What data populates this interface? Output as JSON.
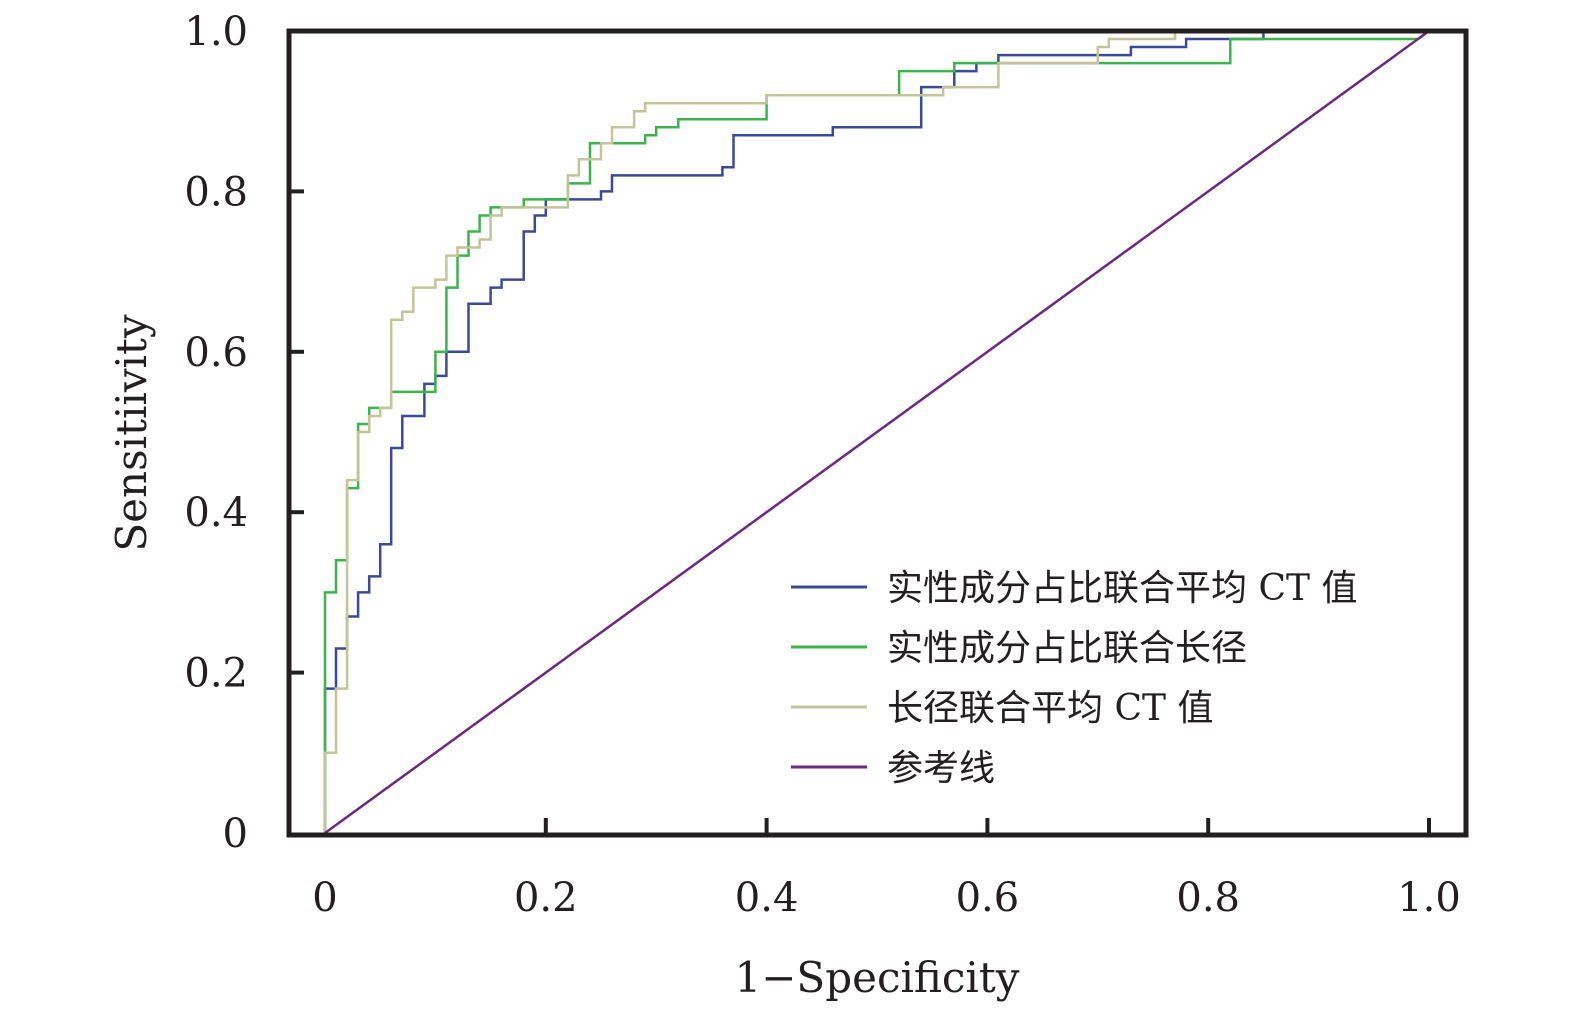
{
  "chart_data": {
    "type": "line",
    "xlabel": "1−Specificity",
    "ylabel": "Sensitiivity",
    "xlim": [
      0,
      1.0
    ],
    "ylim": [
      0,
      1.0
    ],
    "x_ticks": [
      "0",
      "0.2",
      "0.4",
      "0.6",
      "0.8",
      "1.0"
    ],
    "y_ticks": [
      "0",
      "0.2",
      "0.4",
      "0.6",
      "0.8",
      "1.0"
    ],
    "grid": false,
    "legend_position": "bottom-right",
    "series": [
      {
        "name": "实性成分占比联合平均 CT 值",
        "color": "#3a4a9a",
        "points": [
          [
            0,
            0
          ],
          [
            0,
            0.18
          ],
          [
            0.01,
            0.18
          ],
          [
            0.01,
            0.23
          ],
          [
            0.02,
            0.23
          ],
          [
            0.02,
            0.27
          ],
          [
            0.03,
            0.27
          ],
          [
            0.03,
            0.3
          ],
          [
            0.04,
            0.3
          ],
          [
            0.04,
            0.32
          ],
          [
            0.05,
            0.32
          ],
          [
            0.05,
            0.36
          ],
          [
            0.06,
            0.36
          ],
          [
            0.06,
            0.48
          ],
          [
            0.07,
            0.48
          ],
          [
            0.07,
            0.52
          ],
          [
            0.09,
            0.52
          ],
          [
            0.09,
            0.56
          ],
          [
            0.1,
            0.56
          ],
          [
            0.1,
            0.57
          ],
          [
            0.11,
            0.57
          ],
          [
            0.11,
            0.6
          ],
          [
            0.13,
            0.6
          ],
          [
            0.13,
            0.66
          ],
          [
            0.15,
            0.66
          ],
          [
            0.15,
            0.68
          ],
          [
            0.16,
            0.68
          ],
          [
            0.16,
            0.69
          ],
          [
            0.18,
            0.69
          ],
          [
            0.18,
            0.75
          ],
          [
            0.19,
            0.75
          ],
          [
            0.19,
            0.77
          ],
          [
            0.2,
            0.77
          ],
          [
            0.2,
            0.79
          ],
          [
            0.25,
            0.79
          ],
          [
            0.25,
            0.8
          ],
          [
            0.26,
            0.8
          ],
          [
            0.26,
            0.82
          ],
          [
            0.36,
            0.82
          ],
          [
            0.36,
            0.83
          ],
          [
            0.37,
            0.83
          ],
          [
            0.37,
            0.87
          ],
          [
            0.46,
            0.87
          ],
          [
            0.46,
            0.88
          ],
          [
            0.54,
            0.88
          ],
          [
            0.54,
            0.93
          ],
          [
            0.57,
            0.93
          ],
          [
            0.57,
            0.95
          ],
          [
            0.59,
            0.95
          ],
          [
            0.59,
            0.96
          ],
          [
            0.61,
            0.96
          ],
          [
            0.61,
            0.97
          ],
          [
            0.73,
            0.97
          ],
          [
            0.73,
            0.98
          ],
          [
            0.78,
            0.98
          ],
          [
            0.78,
            0.99
          ],
          [
            0.85,
            0.99
          ],
          [
            0.85,
            1.0
          ],
          [
            1.0,
            1.0
          ]
        ]
      },
      {
        "name": "实性成分占比联合长径",
        "color": "#3cb44b",
        "points": [
          [
            0,
            0
          ],
          [
            0,
            0.1
          ],
          [
            0,
            0.3
          ],
          [
            0.01,
            0.3
          ],
          [
            0.01,
            0.34
          ],
          [
            0.02,
            0.34
          ],
          [
            0.02,
            0.43
          ],
          [
            0.03,
            0.43
          ],
          [
            0.03,
            0.51
          ],
          [
            0.04,
            0.51
          ],
          [
            0.04,
            0.53
          ],
          [
            0.06,
            0.53
          ],
          [
            0.06,
            0.55
          ],
          [
            0.1,
            0.55
          ],
          [
            0.1,
            0.6
          ],
          [
            0.11,
            0.6
          ],
          [
            0.11,
            0.68
          ],
          [
            0.12,
            0.68
          ],
          [
            0.12,
            0.72
          ],
          [
            0.13,
            0.72
          ],
          [
            0.13,
            0.75
          ],
          [
            0.14,
            0.75
          ],
          [
            0.14,
            0.77
          ],
          [
            0.15,
            0.77
          ],
          [
            0.15,
            0.78
          ],
          [
            0.18,
            0.78
          ],
          [
            0.18,
            0.79
          ],
          [
            0.22,
            0.79
          ],
          [
            0.22,
            0.81
          ],
          [
            0.24,
            0.81
          ],
          [
            0.24,
            0.86
          ],
          [
            0.27,
            0.86
          ],
          [
            0.29,
            0.86
          ],
          [
            0.29,
            0.87
          ],
          [
            0.3,
            0.87
          ],
          [
            0.3,
            0.88
          ],
          [
            0.32,
            0.88
          ],
          [
            0.32,
            0.89
          ],
          [
            0.4,
            0.89
          ],
          [
            0.4,
            0.92
          ],
          [
            0.52,
            0.92
          ],
          [
            0.52,
            0.95
          ],
          [
            0.57,
            0.95
          ],
          [
            0.57,
            0.96
          ],
          [
            0.61,
            0.96
          ],
          [
            0.7,
            0.96
          ],
          [
            0.82,
            0.96
          ],
          [
            0.82,
            0.99
          ],
          [
            0.99,
            0.99
          ],
          [
            1.0,
            1.0
          ]
        ]
      },
      {
        "name": "长径联合平均 CT 值",
        "color": "#c4c49a",
        "points": [
          [
            0,
            0
          ],
          [
            0,
            0.1
          ],
          [
            0.01,
            0.1
          ],
          [
            0.01,
            0.18
          ],
          [
            0.02,
            0.18
          ],
          [
            0.02,
            0.44
          ],
          [
            0.03,
            0.44
          ],
          [
            0.03,
            0.5
          ],
          [
            0.04,
            0.5
          ],
          [
            0.04,
            0.52
          ],
          [
            0.05,
            0.52
          ],
          [
            0.05,
            0.53
          ],
          [
            0.06,
            0.53
          ],
          [
            0.06,
            0.64
          ],
          [
            0.07,
            0.64
          ],
          [
            0.07,
            0.65
          ],
          [
            0.08,
            0.65
          ],
          [
            0.08,
            0.68
          ],
          [
            0.1,
            0.68
          ],
          [
            0.1,
            0.69
          ],
          [
            0.11,
            0.69
          ],
          [
            0.11,
            0.72
          ],
          [
            0.12,
            0.72
          ],
          [
            0.12,
            0.73
          ],
          [
            0.14,
            0.73
          ],
          [
            0.14,
            0.74
          ],
          [
            0.15,
            0.74
          ],
          [
            0.15,
            0.77
          ],
          [
            0.16,
            0.77
          ],
          [
            0.16,
            0.78
          ],
          [
            0.22,
            0.78
          ],
          [
            0.22,
            0.82
          ],
          [
            0.23,
            0.82
          ],
          [
            0.23,
            0.84
          ],
          [
            0.25,
            0.84
          ],
          [
            0.25,
            0.86
          ],
          [
            0.26,
            0.86
          ],
          [
            0.26,
            0.88
          ],
          [
            0.28,
            0.88
          ],
          [
            0.28,
            0.9
          ],
          [
            0.29,
            0.9
          ],
          [
            0.29,
            0.91
          ],
          [
            0.4,
            0.91
          ],
          [
            0.4,
            0.92
          ],
          [
            0.56,
            0.92
          ],
          [
            0.56,
            0.93
          ],
          [
            0.61,
            0.93
          ],
          [
            0.61,
            0.96
          ],
          [
            0.7,
            0.96
          ],
          [
            0.7,
            0.98
          ],
          [
            0.71,
            0.98
          ],
          [
            0.71,
            0.99
          ],
          [
            0.77,
            0.99
          ],
          [
            0.77,
            1.0
          ],
          [
            1.0,
            1.0
          ]
        ]
      },
      {
        "name": "参考线",
        "color": "#6b2a7f",
        "points": [
          [
            0,
            0
          ],
          [
            1.0,
            1.0
          ]
        ]
      }
    ]
  }
}
